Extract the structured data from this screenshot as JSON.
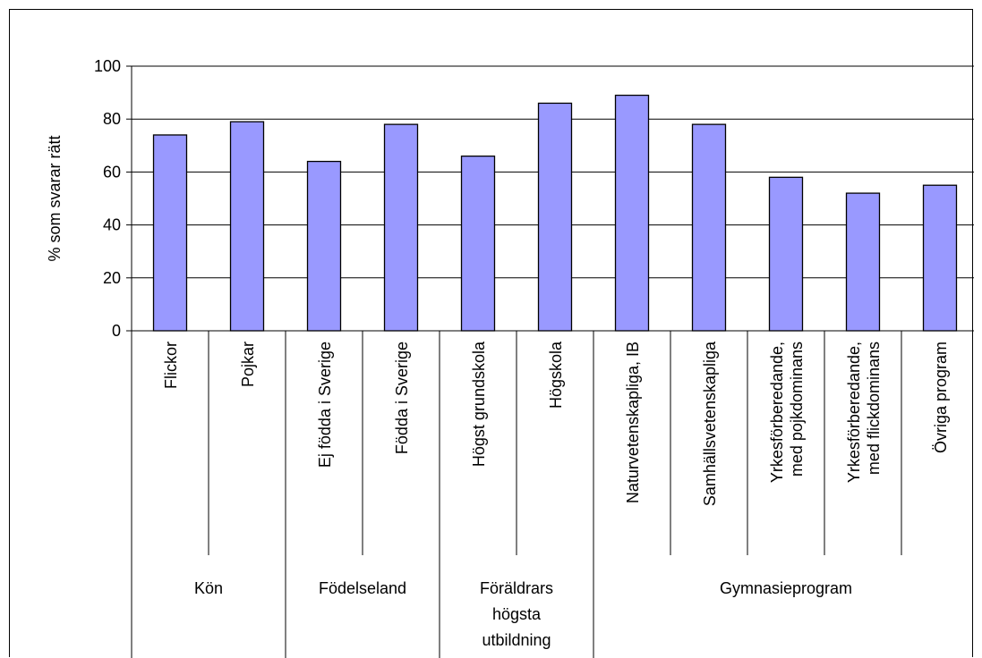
{
  "chart_data": {
    "type": "bar",
    "ylabel": "% som svarar rätt",
    "ylim": [
      0,
      100
    ],
    "yticks": [
      0,
      20,
      40,
      60,
      80,
      100
    ],
    "grid": true,
    "bar_color": "#9999ff",
    "categories": [
      [
        "Flickor"
      ],
      [
        "Pojkar"
      ],
      [
        "Ej födda i Sverige"
      ],
      [
        "Födda i Sverige"
      ],
      [
        "Högst grundskola"
      ],
      [
        "Högskola"
      ],
      [
        "Naturvetenskapliga, IB"
      ],
      [
        "Samhällsvetenskapliga"
      ],
      [
        "Yrkesförberedande,",
        "med pojkdominans"
      ],
      [
        "Yrkesförberedande,",
        "med flickdominans"
      ],
      [
        "Övriga program"
      ]
    ],
    "values": [
      74,
      79,
      64,
      78,
      66,
      86,
      89,
      78,
      58,
      52,
      55
    ],
    "groups": [
      {
        "label": [
          "Kön"
        ],
        "start": 0,
        "end": 1
      },
      {
        "label": [
          "Födelseland"
        ],
        "start": 2,
        "end": 3
      },
      {
        "label": [
          "Föräldrars",
          "högsta",
          "utbildning"
        ],
        "start": 4,
        "end": 5
      },
      {
        "label": [
          "Gymnasieprogram"
        ],
        "start": 6,
        "end": 10
      }
    ]
  }
}
